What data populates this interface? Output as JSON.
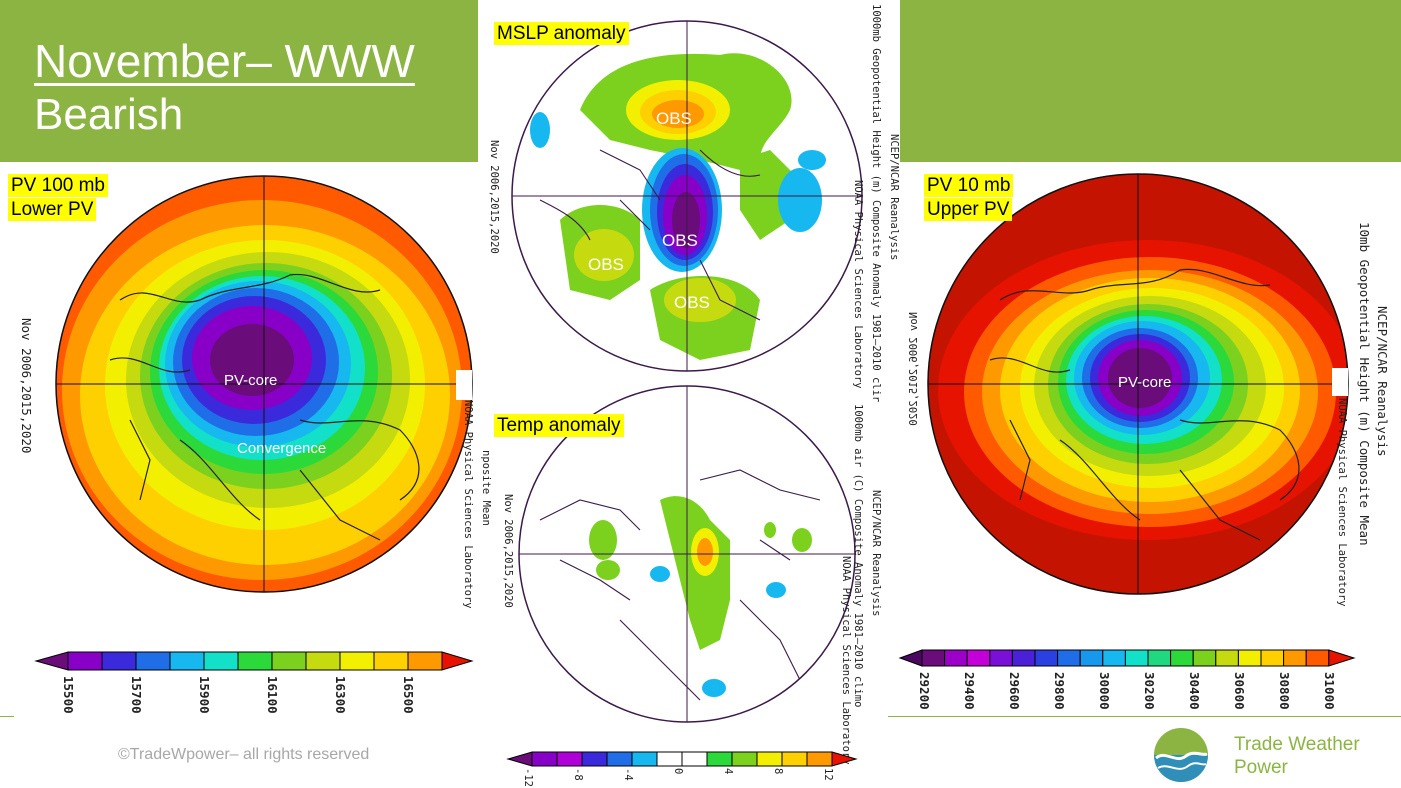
{
  "header": {
    "title": "November– WWW",
    "subtitle": "Bearish"
  },
  "left_panel": {
    "label_line1": "PV 100 mb",
    "label_line2": "Lower PV",
    "map_labels": [
      "PV-core",
      "Convergence"
    ],
    "side_left": "Nov 2006,2015,2020",
    "side_right_line1": "NOAA Physical Sciences Laboratory",
    "side_right_line2": "nposite Mean"
  },
  "mslp_panel": {
    "label": "MSLP anomaly",
    "map_labels": [
      "OBS",
      "OBS",
      "OBS",
      "OBS"
    ],
    "side_left": "Nov 2006,2015,2020",
    "side_right_line1": "1000mb Geopotential Height (m) Composite Anomaly 1981–2010 clir",
    "side_right_line2": "NCEP/NCAR Reanalysis",
    "side_right_line3": "NOAA Physical Sciences Laboratory",
    "side_far": "Nov 2006,2015,2020"
  },
  "temp_panel": {
    "label": "Temp anomaly",
    "side_left": "Nov 2006,2015,2020",
    "side_right_line1": "1000mb air (C) Composite Anomaly 1981–2010 climo",
    "side_right_line2": "NCEP/NCAR Reanalysis",
    "side_right_line3": "NOAA Physical Sciences Laboratory"
  },
  "right_panel": {
    "label_line1": "PV 10 mb",
    "label_line2": "Upper PV",
    "map_labels": [
      "PV-core"
    ],
    "side_line1": "10mb Geopotential Height (m) Composite Mean",
    "side_line2": "NCEP/NCAR Reanalysis",
    "side_line3": "NOAA Physical Sciences Laboratory"
  },
  "footer": {
    "copyright": "©TradeWpower– all rights reserved",
    "logo_line1": "Trade Weather",
    "logo_line2": "Power"
  },
  "chart_data": [
    {
      "type": "heatmap",
      "title": "PV 100 mb",
      "colorbar_ticks": [
        "15500",
        "15700",
        "15900",
        "16100",
        "16300",
        "16500"
      ],
      "colors": [
        "#6a0d7a",
        "#8800c8",
        "#3a2adc",
        "#1f6ee8",
        "#17b8f0",
        "#12e0c8",
        "#2cd93a",
        "#7cd11e",
        "#c6da10",
        "#f2f000",
        "#ffd000",
        "#ff9900",
        "#ff5a00",
        "#e61300"
      ]
    },
    {
      "type": "heatmap",
      "title": "MSLP anomaly",
      "colorbar_ticks": [
        "-12",
        "-8",
        "-4",
        "0",
        "4",
        "8",
        "12"
      ]
    },
    {
      "type": "heatmap",
      "title": "Temp anomaly"
    },
    {
      "type": "heatmap",
      "title": "PV 10 mb",
      "colorbar_ticks": [
        "29200",
        "29400",
        "29600",
        "29800",
        "30000",
        "30200",
        "30400",
        "30600",
        "30800",
        "31000"
      ]
    }
  ]
}
